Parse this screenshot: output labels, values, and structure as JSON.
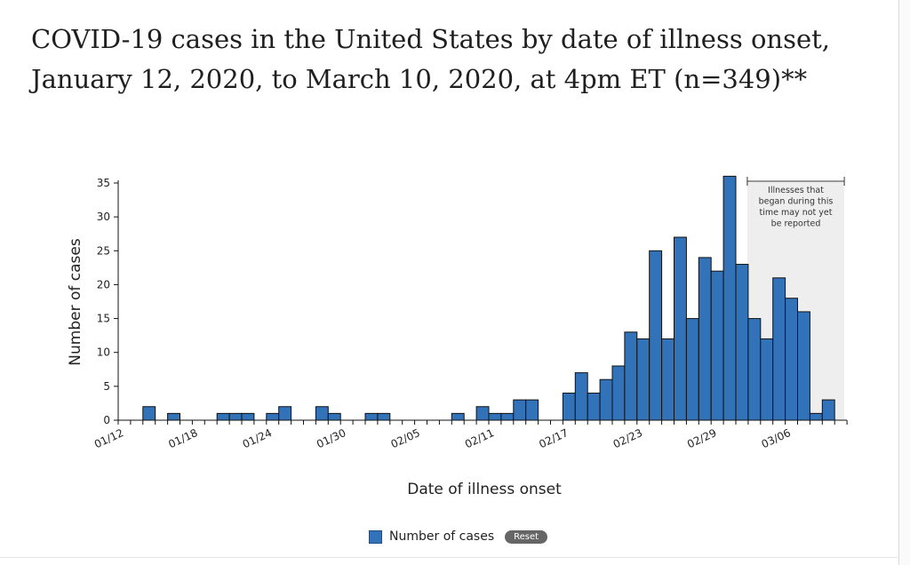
{
  "page": {
    "title": "COVID-19 cases in the United States by date of illness onset, January 12, 2020, to March 10, 2020, at 4pm ET (n=349)**"
  },
  "legend": {
    "series_label": "Number of cases",
    "reset_label": "Reset"
  },
  "chart_data": {
    "type": "bar",
    "title": "",
    "xlabel": "Date of illness onset",
    "ylabel": "Number of cases",
    "ylim": [
      0,
      35
    ],
    "yticks": [
      0,
      5,
      10,
      15,
      20,
      25,
      30,
      35
    ],
    "grid": false,
    "legend_position": "bottom",
    "bar_color": "#3272b8",
    "bar_edge_color": "#111111",
    "x_tick_labels": [
      "01/12",
      "01/18",
      "01/24",
      "01/30",
      "02/05",
      "02/11",
      "02/17",
      "02/23",
      "02/29",
      "03/06"
    ],
    "categories": [
      "01/12",
      "01/13",
      "01/14",
      "01/15",
      "01/16",
      "01/17",
      "01/18",
      "01/19",
      "01/20",
      "01/21",
      "01/22",
      "01/23",
      "01/24",
      "01/25",
      "01/26",
      "01/27",
      "01/28",
      "01/29",
      "01/30",
      "01/31",
      "02/01",
      "02/02",
      "02/03",
      "02/04",
      "02/05",
      "02/06",
      "02/07",
      "02/08",
      "02/09",
      "02/10",
      "02/11",
      "02/12",
      "02/13",
      "02/14",
      "02/15",
      "02/16",
      "02/17",
      "02/18",
      "02/19",
      "02/20",
      "02/21",
      "02/22",
      "02/23",
      "02/24",
      "02/25",
      "02/26",
      "02/27",
      "02/28",
      "02/29",
      "03/01",
      "03/02",
      "03/03",
      "03/04",
      "03/05",
      "03/06",
      "03/07",
      "03/08",
      "03/09",
      "03/10"
    ],
    "series": [
      {
        "name": "Number of cases",
        "values": [
          0,
          0,
          2,
          0,
          1,
          0,
          0,
          0,
          1,
          1,
          1,
          0,
          1,
          2,
          0,
          0,
          2,
          1,
          0,
          0,
          1,
          1,
          0,
          0,
          0,
          0,
          0,
          1,
          0,
          2,
          1,
          1,
          3,
          3,
          0,
          0,
          4,
          7,
          4,
          6,
          8,
          13,
          12,
          25,
          12,
          27,
          15,
          24,
          22,
          36,
          23,
          15,
          12,
          21,
          18,
          16,
          1,
          3,
          0
        ]
      }
    ],
    "annotation": {
      "text": "Illnesses that began during this time may not yet be reported",
      "lines": [
        "Illnesses that",
        "began during this",
        "time may not yet",
        "be reported"
      ],
      "start": "03/03",
      "end": "03/10",
      "shade_color": "#eeeeee"
    }
  }
}
